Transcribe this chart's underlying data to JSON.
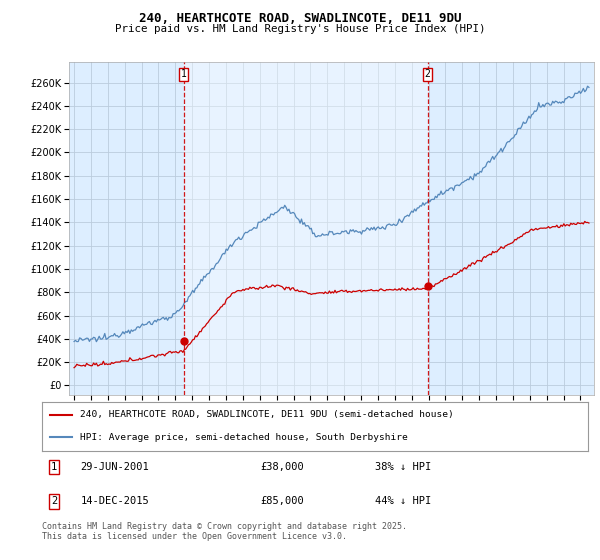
{
  "title_line1": "240, HEARTHCOTE ROAD, SWADLINCOTE, DE11 9DU",
  "title_line2": "Price paid vs. HM Land Registry's House Price Index (HPI)",
  "background_color": "#ffffff",
  "plot_background": "#ddeeff",
  "grid_color": "#bbccdd",
  "red_color": "#cc0000",
  "blue_color": "#5588bb",
  "shade_color": "#ddeeff",
  "annotation1": {
    "label": "1",
    "date_str": "29-JUN-2001",
    "price": 38000,
    "pct": "38% ↓ HPI",
    "x_year": 2001.49
  },
  "annotation2": {
    "label": "2",
    "date_str": "14-DEC-2015",
    "price": 85000,
    "pct": "44% ↓ HPI",
    "x_year": 2015.95
  },
  "legend_entry1": "240, HEARTHCOTE ROAD, SWADLINCOTE, DE11 9DU (semi-detached house)",
  "legend_entry2": "HPI: Average price, semi-detached house, South Derbyshire",
  "footer": "Contains HM Land Registry data © Crown copyright and database right 2025.\nThis data is licensed under the Open Government Licence v3.0.",
  "yticks": [
    0,
    20000,
    40000,
    60000,
    80000,
    100000,
    120000,
    140000,
    160000,
    180000,
    200000,
    220000,
    240000,
    260000
  ],
  "ylim": [
    -8000,
    278000
  ],
  "xlim_start": 1994.7,
  "xlim_end": 2025.8,
  "xticks": [
    1995,
    1996,
    1997,
    1998,
    1999,
    2000,
    2001,
    2002,
    2003,
    2004,
    2005,
    2006,
    2007,
    2008,
    2009,
    2010,
    2011,
    2012,
    2013,
    2014,
    2015,
    2016,
    2017,
    2018,
    2019,
    2020,
    2021,
    2022,
    2023,
    2024,
    2025
  ]
}
